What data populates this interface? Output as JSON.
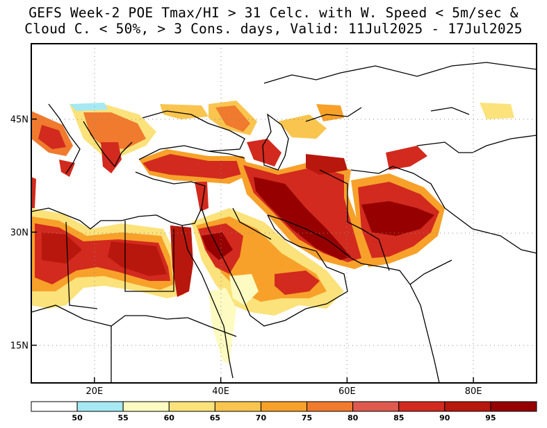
{
  "title": {
    "line1": "GEFS Week-2 POE Tmax/HI > 31 Celc. with W. Speed < 5m/sec &",
    "line2": "Cloud C. < 50%, > 3 Cons. days, Valid: 11Jul2025 - 17Jul2025"
  },
  "map": {
    "lon_range": [
      10,
      90
    ],
    "lat_range": [
      10,
      55
    ],
    "x_ticks": [
      {
        "lon": 20,
        "label": "20E"
      },
      {
        "lon": 40,
        "label": "40E"
      },
      {
        "lon": 60,
        "label": "60E"
      },
      {
        "lon": 80,
        "label": "80E"
      }
    ],
    "y_ticks": [
      {
        "lat": 45,
        "label": "45N"
      },
      {
        "lat": 30,
        "label": "30N"
      },
      {
        "lat": 15,
        "label": "15N"
      }
    ],
    "grid": "dotted"
  },
  "colorbar": {
    "bins": [
      {
        "color": "#ffffff",
        "label": "50"
      },
      {
        "color": "#a6e9f2",
        "label": "55"
      },
      {
        "color": "#fdfbc1",
        "label": "60"
      },
      {
        "color": "#fbe27b",
        "label": "65"
      },
      {
        "color": "#f9c54f",
        "label": "70"
      },
      {
        "color": "#f7a12a",
        "label": "75"
      },
      {
        "color": "#f07a2e",
        "label": "80"
      },
      {
        "color": "#de5a4f",
        "label": "85"
      },
      {
        "color": "#d22a1e",
        "label": "90"
      },
      {
        "color": "#b8170d",
        "label": "95"
      },
      {
        "color": "#960000",
        "label": ""
      }
    ]
  }
}
